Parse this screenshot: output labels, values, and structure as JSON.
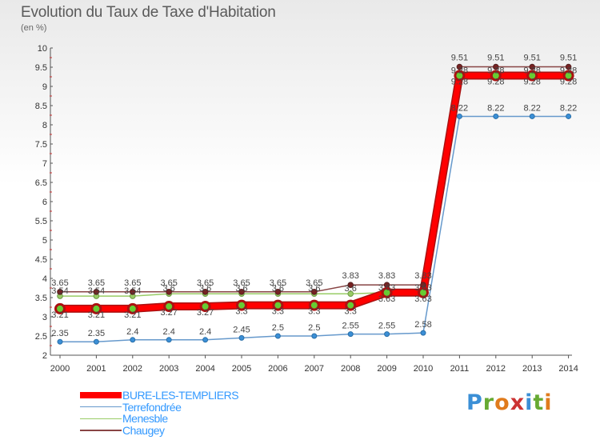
{
  "header": {
    "title": "Evolution du Taux de Taxe d'Habitation",
    "unit": "(en %)"
  },
  "logo": {
    "text": "Proxiti"
  },
  "chart_data": {
    "type": "line",
    "title": "Evolution du Taux de Taxe d'Habitation",
    "ylabel": "(en %)",
    "xlabel": "",
    "ylim": [
      2,
      10
    ],
    "y_ticks": [
      "2",
      "2.5",
      "3",
      "3.5",
      "4",
      "4.5",
      "5",
      "5.5",
      "6",
      "6.5",
      "7",
      "7.5",
      "8",
      "8.5",
      "9",
      "9.5",
      "10"
    ],
    "categories": [
      "2000",
      "2001",
      "2002",
      "2003",
      "2004",
      "2005",
      "2006",
      "2007",
      "2008",
      "2009",
      "2010",
      "2011",
      "2012",
      "2013",
      "2014"
    ],
    "grid": false,
    "legend_position": "bottom",
    "series": [
      {
        "name": "BURE-LES-TEMPLIERS",
        "color": "#ff0000",
        "values": [
          3.21,
          3.21,
          3.21,
          3.27,
          3.27,
          3.3,
          3.3,
          3.3,
          3.3,
          3.63,
          3.63,
          9.28,
          9.28,
          9.28,
          9.28
        ]
      },
      {
        "name": "Terrefondrée",
        "color": "#6699cc",
        "values": [
          2.35,
          2.35,
          2.4,
          2.4,
          2.4,
          2.45,
          2.5,
          2.5,
          2.55,
          2.55,
          2.58,
          8.22,
          8.22,
          8.22,
          8.22
        ]
      },
      {
        "name": "Menesble",
        "color": "#99cc66",
        "values": [
          3.54,
          3.54,
          3.54,
          3.6,
          3.6,
          3.6,
          3.6,
          3.6,
          3.6,
          3.63,
          3.63,
          9.28,
          9.28,
          9.28,
          9.28
        ]
      },
      {
        "name": "Chaugey",
        "color": "#884444",
        "values": [
          3.65,
          3.65,
          3.65,
          3.65,
          3.65,
          3.65,
          3.65,
          3.65,
          3.83,
          3.83,
          3.83,
          9.51,
          9.51,
          9.51,
          9.51
        ]
      }
    ]
  }
}
